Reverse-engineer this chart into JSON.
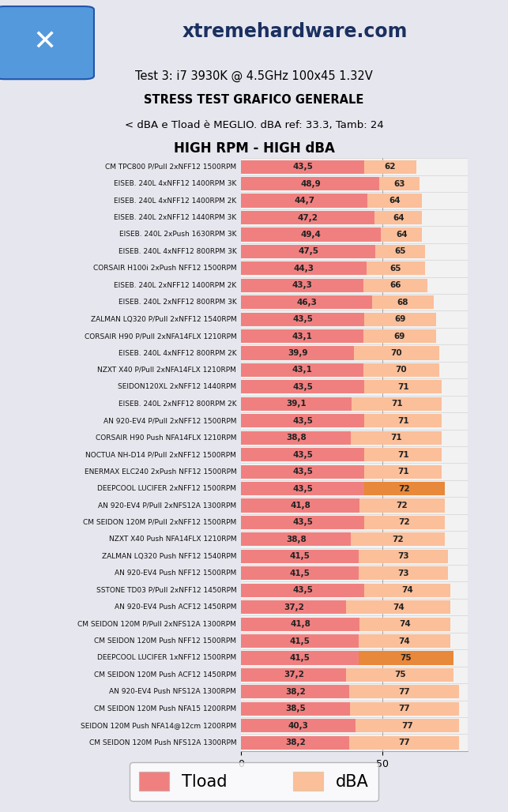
{
  "title_lines": [
    "Test 3: i7 3930K @ 4.5GHz 100x45 1.32V",
    "STRESS TEST GRAFICO GENERALE",
    "< dBA e Tload è MEGLIO. dBA ref: 33.3, Tamb: 24",
    "HIGH RPM - HIGH dBA"
  ],
  "site_name": "xtremehardware.com",
  "categories": [
    "CM TPC800 P/Pull 2xNFF12 1500RPM",
    "EISEB. 240L 4xNFF12 1400RPM 3K",
    "EISEB. 240L 4xNFF12 1400RPM 2K",
    "EISEB. 240L 2xNFF12 1440RPM 3K",
    "EISEB. 240L 2xPush 1630RPM 3K",
    "EISEB. 240L 4xNFF12 800RPM 3K",
    "CORSAIR H100i 2xPush NFF12 1500RPM",
    "EISEB. 240L 2xNFF12 1400RPM 2K",
    "EISEB. 240L 2xNFF12 800RPM 3K",
    "ZALMAN LQ320 P/Pull 2xNFF12 1540RPM",
    "CORSAIR H90 P/Pull 2xNFA14FLX 1210RPM",
    "EISEB. 240L 4xNFF12 800RPM 2K",
    "NZXT X40 P/Pull 2xNFA14FLX 1210RPM",
    "SEIDON120XL 2xNFF12 1440RPM",
    "EISEB. 240L 2xNFF12 800RPM 2K",
    "AN 920-EV4 P/Pull 2xNFF12 1500RPM",
    "CORSAIR H90 Push NFA14FLX 1210RPM",
    "NOCTUA NH-D14 P/Pull 2xNFF12 1500RPM",
    "ENERMAX ELC240 2xPush NFF12 1500RPM",
    "DEEPCOOL LUCIFER 2xNFF12 1500RPM",
    "AN 920-EV4 P/Pull 2xNFS12A 1300RPM",
    "CM SEIDON 120M P/Pull 2xNFF12 1500RPM",
    "NZXT X40 Push NFA14FLX 1210RPM",
    "ZALMAN LQ320 Push NFF12 1540RPM",
    "AN 920-EV4 Push NFF12 1500RPM",
    "SSTONE TD03 P/Pull 2xNFF12 1450RPM",
    "AN 920-EV4 Push ACF12 1450RPM",
    "CM SEIDON 120M P/Pull 2xNFS12A 1300RPM",
    "CM SEIDON 120M Push NFF12 1500RPM",
    "DEEPCOOL LUCIFER 1xNFF12 1500RPM",
    "CM SEIDON 120M Push ACF12 1450RPM",
    "AN 920-EV4 Push NFS12A 1300RPM",
    "CM SEIDON 120M Push NFA15 1200RPM",
    "SEIDON 120M Push NFA14@12cm 1200RPM",
    "CM SEIDON 120M Push NFS12A 1300RPM"
  ],
  "tload": [
    43.5,
    48.9,
    44.7,
    47.2,
    49.4,
    47.5,
    44.3,
    43.3,
    46.3,
    43.5,
    43.1,
    39.9,
    43.1,
    43.5,
    39.1,
    43.5,
    38.8,
    43.5,
    43.5,
    43.5,
    41.8,
    43.5,
    38.8,
    41.5,
    41.5,
    43.5,
    37.2,
    41.8,
    41.5,
    41.5,
    37.2,
    38.2,
    38.5,
    40.3,
    38.2
  ],
  "dba": [
    62,
    63,
    64,
    64,
    64,
    65,
    65,
    66,
    68,
    69,
    69,
    70,
    70,
    71,
    71,
    71,
    71,
    71,
    71,
    72,
    72,
    72,
    72,
    73,
    73,
    74,
    74,
    74,
    74,
    75,
    75,
    77,
    77,
    77,
    77
  ],
  "tload_color": "#F08080",
  "dba_color_normal": "#FBBF9A",
  "dba_color_highlight": "#E8883A",
  "highlight_rows": [
    19,
    29
  ],
  "bg_color": "#E6E6EE",
  "chart_bg": "#F2F2F2",
  "title_color": "#000000",
  "site_color": "#1a3060",
  "axis_max": 80,
  "legend_tload": "Tload",
  "legend_dba": "dBA"
}
